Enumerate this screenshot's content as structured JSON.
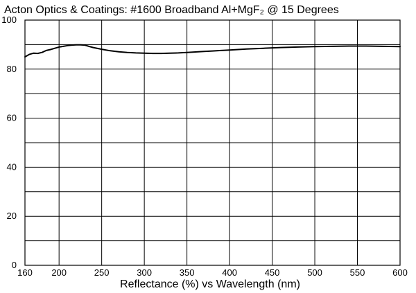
{
  "chart_data": {
    "type": "line",
    "title": "Acton Optics & Coatings: #1600 Broadband Al+MgF₂ @ 15 Degrees",
    "xlabel": "Reflectance (%)  vs  Wavelength (nm)",
    "ylabel": "",
    "xlim": [
      160,
      600
    ],
    "ylim": [
      0,
      100
    ],
    "x_ticks": [
      160,
      200,
      250,
      300,
      350,
      400,
      450,
      500,
      550,
      600
    ],
    "y_ticks": [
      0,
      20,
      40,
      60,
      80,
      100
    ],
    "y_grid": [
      0,
      10,
      20,
      30,
      40,
      50,
      60,
      70,
      80,
      90,
      100
    ],
    "grid": true,
    "legend": "none",
    "series": [
      {
        "x": [
          160,
          165,
          170,
          175,
          180,
          185,
          190,
          195,
          200,
          205,
          210,
          215,
          220,
          225,
          230,
          235,
          240,
          250,
          260,
          270,
          280,
          290,
          300,
          310,
          320,
          330,
          340,
          350,
          360,
          370,
          380,
          390,
          400,
          420,
          440,
          460,
          480,
          500,
          520,
          540,
          550,
          560,
          580,
          600
        ],
        "y": [
          85.0,
          86.0,
          86.5,
          86.4,
          86.8,
          87.6,
          88.0,
          88.5,
          89.0,
          89.3,
          89.6,
          89.8,
          89.9,
          89.9,
          89.8,
          89.3,
          88.8,
          88.1,
          87.5,
          87.1,
          86.8,
          86.6,
          86.5,
          86.4,
          86.4,
          86.5,
          86.6,
          86.8,
          87.0,
          87.2,
          87.4,
          87.6,
          87.8,
          88.2,
          88.5,
          88.8,
          89.0,
          89.2,
          89.3,
          89.4,
          89.4,
          89.4,
          89.3,
          89.2
        ]
      }
    ]
  }
}
